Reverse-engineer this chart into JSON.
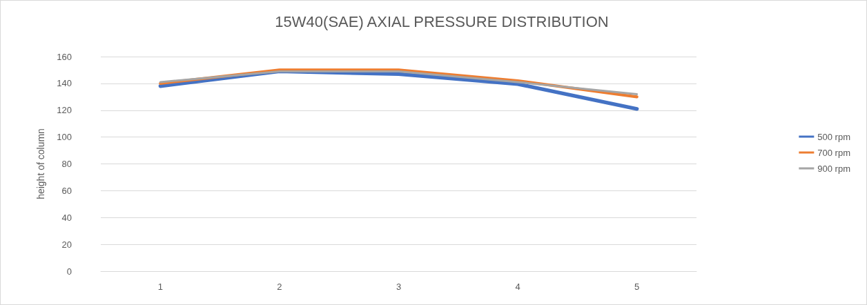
{
  "chart_data": {
    "type": "line",
    "title": "15W40(SAE) AXIAL PRESSURE DISTRIBUTION",
    "ylabel": "height of column",
    "categories": [
      "1",
      "2",
      "3",
      "4",
      "5"
    ],
    "series": [
      {
        "name": "500 rpm",
        "color": "#4472c4",
        "values": [
          138,
          149,
          147,
          139.5,
          121
        ]
      },
      {
        "name": "700 rpm",
        "color": "#ed7d31",
        "values": [
          140,
          150,
          150,
          142,
          130
        ]
      },
      {
        "name": "900 rpm",
        "color": "#a5a5a5",
        "values": [
          141,
          149,
          149,
          141,
          132
        ]
      }
    ],
    "ylim": [
      0,
      160
    ],
    "yticks": [
      0,
      20,
      40,
      60,
      80,
      100,
      120,
      140,
      160
    ],
    "grid": "y",
    "legend": "right",
    "marker": "none",
    "line_style": "solid"
  }
}
